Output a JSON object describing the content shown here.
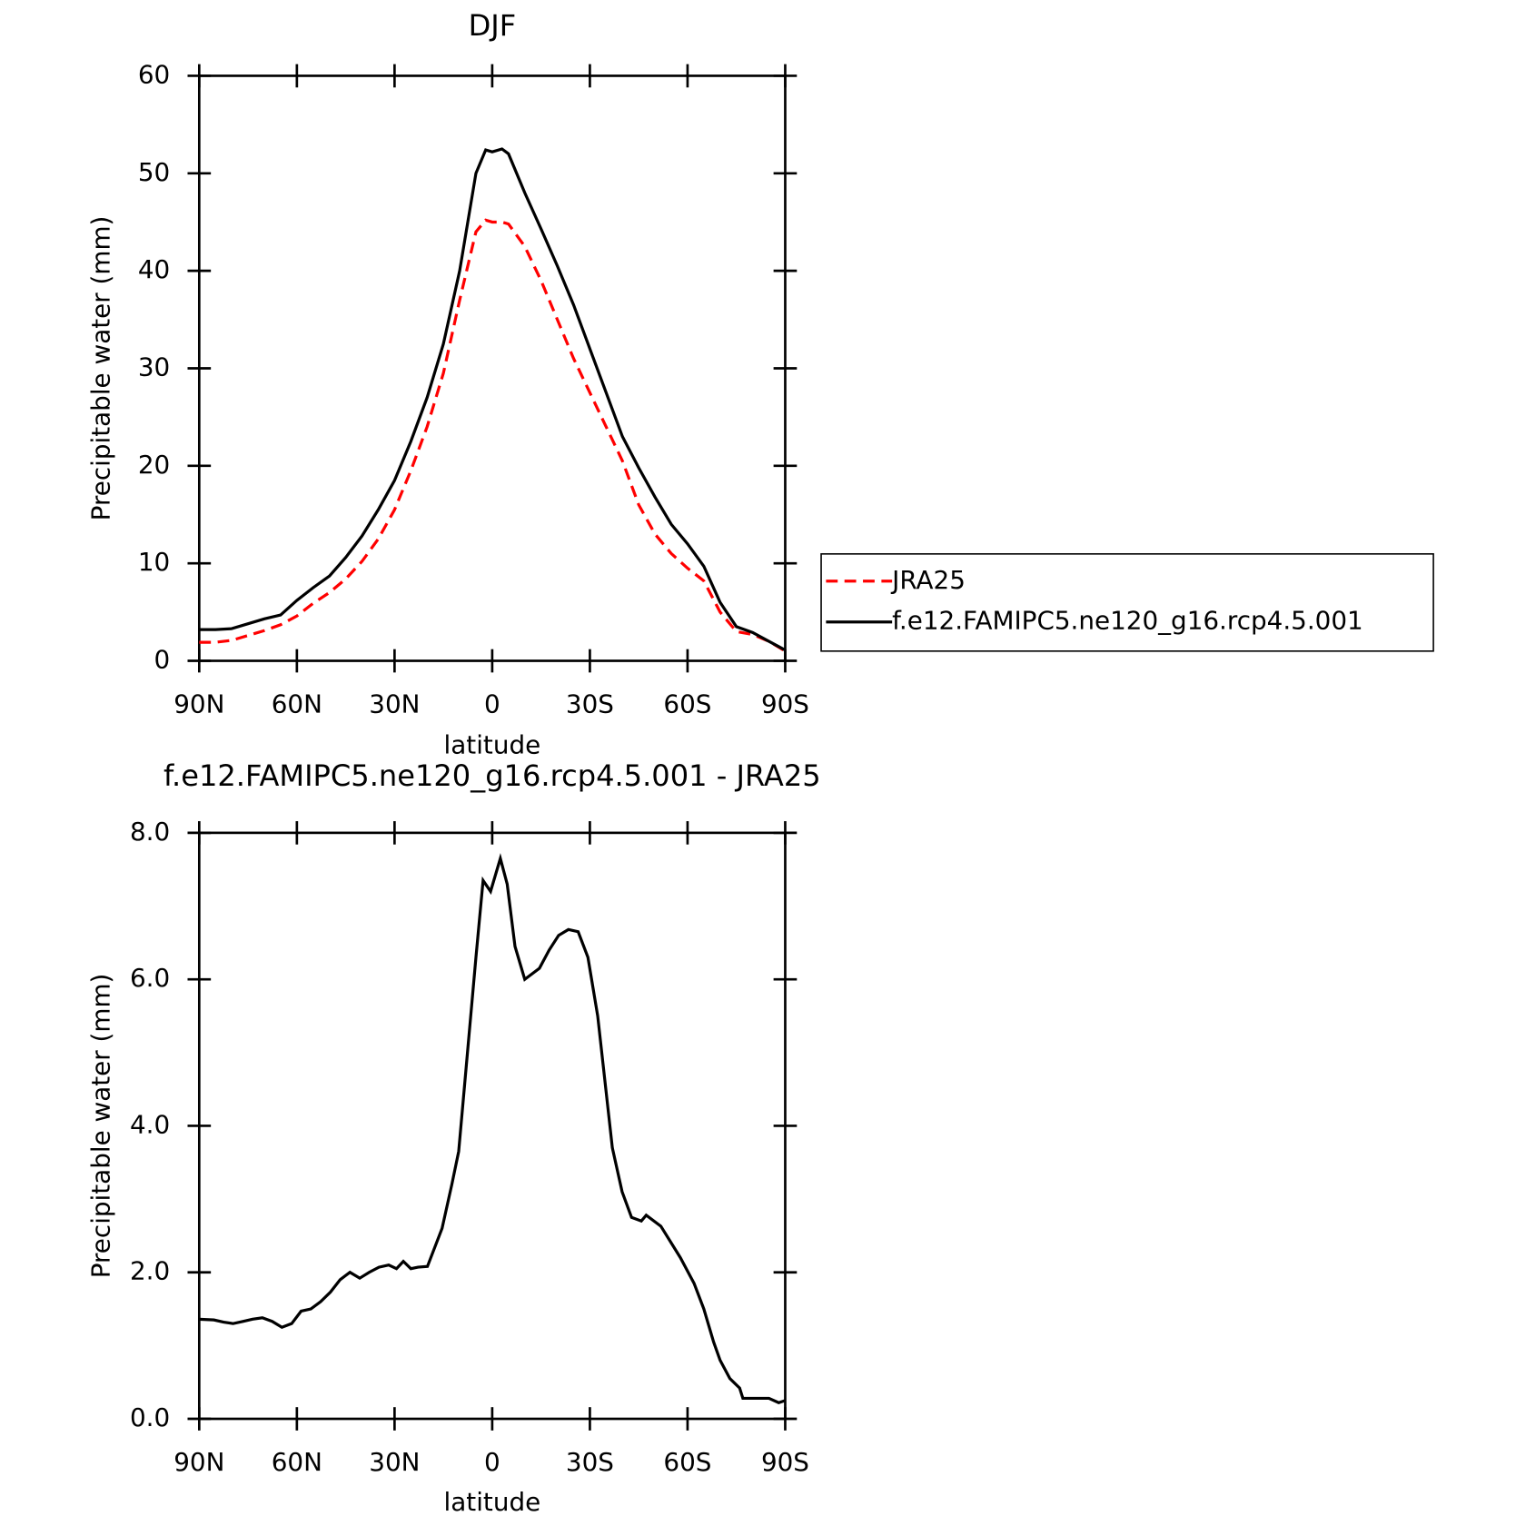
{
  "chart_data": [
    {
      "type": "line",
      "title": "DJF",
      "xlabel": "latitude",
      "ylabel": "Precipitable water (mm)",
      "xlim": [
        90,
        -90
      ],
      "ylim": [
        0,
        60
      ],
      "xticks": [
        {
          "value": 90,
          "label": "90N"
        },
        {
          "value": 60,
          "label": "60N"
        },
        {
          "value": 30,
          "label": "30N"
        },
        0,
        {
          "value": -30,
          "label": "30S"
        },
        {
          "value": -60,
          "label": "60S"
        },
        {
          "value": -90,
          "label": "90S"
        }
      ],
      "yticks": [
        0,
        10,
        20,
        30,
        40,
        50,
        60
      ],
      "legend": "right",
      "x": [
        90,
        85,
        80,
        75,
        70,
        65,
        60,
        55,
        50,
        45,
        40,
        35,
        30,
        25,
        20,
        15,
        10,
        5,
        2,
        0,
        -3,
        -5,
        -10,
        -15,
        -20,
        -25,
        -30,
        -35,
        -40,
        -45,
        -50,
        -55,
        -60,
        -65,
        -70,
        -75,
        -80,
        -85,
        -90
      ],
      "series": [
        {
          "name": "JRA25",
          "color": "#ff0000",
          "dash": true,
          "values": [
            1.9,
            1.9,
            2.1,
            2.6,
            3.1,
            3.7,
            4.6,
            5.9,
            7,
            8.4,
            10.2,
            12.5,
            15.5,
            19.5,
            24,
            29.5,
            37,
            44,
            45.2,
            45,
            45,
            44.8,
            42.5,
            39,
            35,
            31,
            27.5,
            24,
            20.5,
            16,
            13,
            11,
            9.5,
            8.2,
            5,
            3,
            2.7,
            2,
            1
          ]
        },
        {
          "name": "f.e12.FAMIPC5.ne120_g16.rcp4.5.001",
          "color": "#000000",
          "dash": false,
          "values": [
            3.2,
            3.2,
            3.3,
            3.8,
            4.3,
            4.7,
            6.2,
            7.5,
            8.7,
            10.6,
            12.8,
            15.5,
            18.5,
            22.5,
            27,
            32.5,
            40,
            50,
            52.4,
            52.2,
            52.5,
            52,
            48,
            44.3,
            40.5,
            36.5,
            32,
            27.5,
            23,
            19.8,
            16.8,
            14,
            12,
            9.7,
            6,
            3.5,
            2.9,
            2,
            1.1
          ]
        }
      ]
    },
    {
      "type": "line",
      "title": "f.e12.FAMIPC5.ne120_g16.rcp4.5.001 - JRA25",
      "xlabel": "latitude",
      "ylabel": "Precipitable water (mm)",
      "xlim": [
        90,
        -90
      ],
      "ylim": [
        0,
        8
      ],
      "xticks": [
        {
          "value": 90,
          "label": "90N"
        },
        {
          "value": 60,
          "label": "60N"
        },
        {
          "value": 30,
          "label": "30N"
        },
        0,
        {
          "value": -30,
          "label": "30S"
        },
        {
          "value": -60,
          "label": "60S"
        },
        {
          "value": -90,
          "label": "90S"
        }
      ],
      "yticks": [
        {
          "value": 0,
          "label": "0.0"
        },
        {
          "value": 2,
          "label": "2.0"
        },
        {
          "value": 4,
          "label": "4.0"
        },
        {
          "value": 6,
          "label": "6.0"
        },
        {
          "value": 8,
          "label": "8.0"
        }
      ],
      "x": [
        90,
        85.5,
        82.5,
        79.6,
        76.6,
        73.6,
        70.6,
        67.6,
        64.6,
        61.6,
        58.7,
        55.7,
        52.7,
        49.7,
        46.7,
        43.7,
        40.7,
        37.8,
        34.8,
        31.8,
        29.4,
        27.3,
        25,
        22.8,
        19.9,
        15.4,
        12.4,
        10.3,
        8,
        5,
        2.8,
        0.5,
        -2.5,
        -4.6,
        -7,
        -10,
        -11.5,
        -14.5,
        -17.5,
        -20.4,
        -23.4,
        -26.4,
        -29.4,
        -32.4,
        -36.9,
        -39.9,
        -42.8,
        -45.8,
        -47.3,
        -51.8,
        -57.8,
        -62,
        -65,
        -68,
        -70,
        -73,
        -76,
        -77,
        -85,
        -88,
        -90
      ],
      "series": [
        {
          "color": "#000000",
          "dash": false,
          "values": [
            1.36,
            1.35,
            1.32,
            1.3,
            1.33,
            1.36,
            1.38,
            1.33,
            1.25,
            1.3,
            1.47,
            1.5,
            1.6,
            1.73,
            1.9,
            2.0,
            1.92,
            2.0,
            2.07,
            2.1,
            2.05,
            2.15,
            2.05,
            2.07,
            2.08,
            2.6,
            3.2,
            3.65,
            4.8,
            6.3,
            7.35,
            7.2,
            7.65,
            7.3,
            6.45,
            6.0,
            6.05,
            6.15,
            6.4,
            6.6,
            6.68,
            6.65,
            6.3,
            5.5,
            3.7,
            3.1,
            2.75,
            2.7,
            2.78,
            2.63,
            2.2,
            1.85,
            1.5,
            1.05,
            0.8,
            0.55,
            0.42,
            0.28,
            0.28,
            0.22,
            0.25
          ]
        }
      ]
    }
  ]
}
